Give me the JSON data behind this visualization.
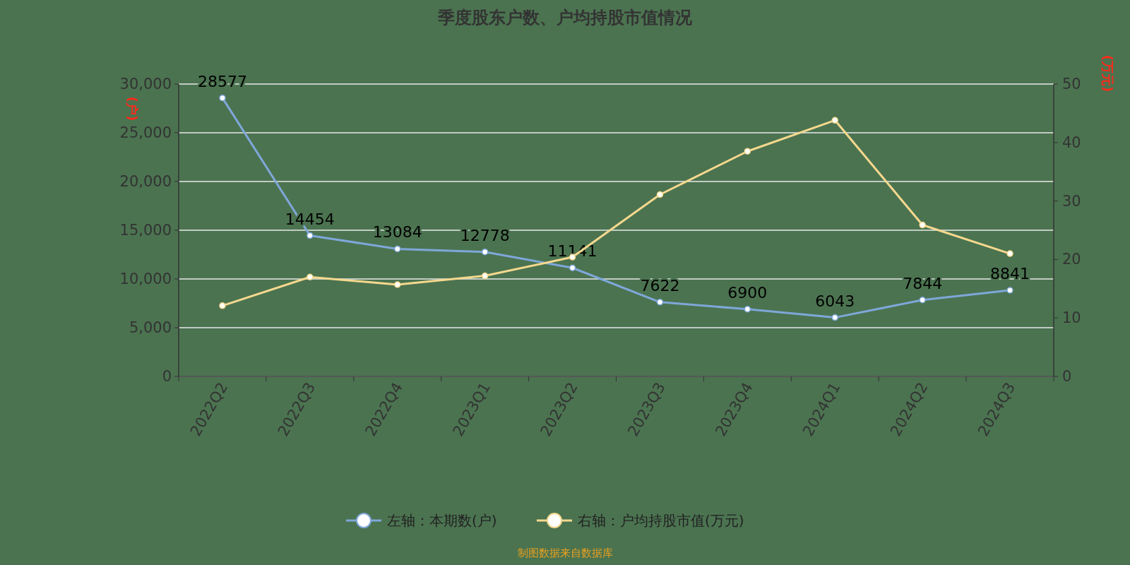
{
  "chart_data": {
    "type": "line",
    "title": "季度股东户数、户均持股市值情况",
    "ylabel": "(户)",
    "y2label": "(万元)",
    "categories": [
      "2022Q2",
      "2022Q3",
      "2022Q4",
      "2023Q1",
      "2023Q2",
      "2023Q3",
      "2023Q4",
      "2024Q1",
      "2024Q2",
      "2024Q3"
    ],
    "series": [
      {
        "name": "左轴：本期数(户)",
        "color": "#7fa7d9",
        "values": [
          28577,
          14454,
          13084,
          12778,
          11141,
          7622,
          6900,
          6043,
          7844,
          8841
        ],
        "value_labels": [
          "28577",
          "14454",
          "13084",
          "12778",
          "11141",
          "7622",
          "6900",
          "6043",
          "7844",
          "8841"
        ]
      },
      {
        "name": "右轴：户均持股市值(万元)",
        "color": "#f5d88e",
        "axis": "y2",
        "values": [
          12.1,
          17.0,
          15.7,
          17.2,
          20.4,
          31.1,
          38.5,
          43.8,
          25.9,
          21.0
        ]
      }
    ],
    "ylim": [
      0,
      30000
    ],
    "yticks": [
      {
        "value": 0,
        "label": "0"
      },
      {
        "value": 5000,
        "label": "5,000"
      },
      {
        "value": 10000,
        "label": "10,000"
      },
      {
        "value": 15000,
        "label": "15,000"
      },
      {
        "value": 20000,
        "label": "20,000"
      },
      {
        "value": 25000,
        "label": "25,000"
      },
      {
        "value": 30000,
        "label": "30,000"
      }
    ],
    "y2lim": [
      0,
      50
    ],
    "y2ticks": [
      0,
      10,
      20,
      30,
      40,
      50
    ],
    "grid": "y",
    "legend": "bottom",
    "marker": "circle",
    "line_style": "solid",
    "annotations": [
      "制图数据来自数据库"
    ]
  }
}
